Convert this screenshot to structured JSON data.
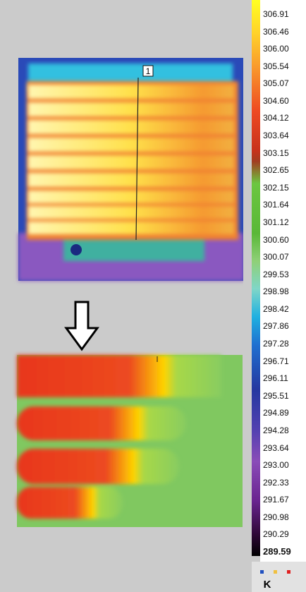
{
  "marker": "1",
  "scale": {
    "labels": [
      "306.91",
      "306.46",
      "306.00",
      "305.54",
      "305.07",
      "304.60",
      "304.12",
      "303.64",
      "303.15",
      "302.65",
      "302.15",
      "301.64",
      "301.12",
      "300.60",
      "300.07",
      "299.53",
      "298.98",
      "298.42",
      "297.86",
      "297.28",
      "296.71",
      "296.11",
      "295.51",
      "294.89",
      "294.28",
      "293.64",
      "293.00",
      "292.33",
      "291.67",
      "290.98",
      "290.29",
      "289.59"
    ],
    "unit": "K"
  }
}
